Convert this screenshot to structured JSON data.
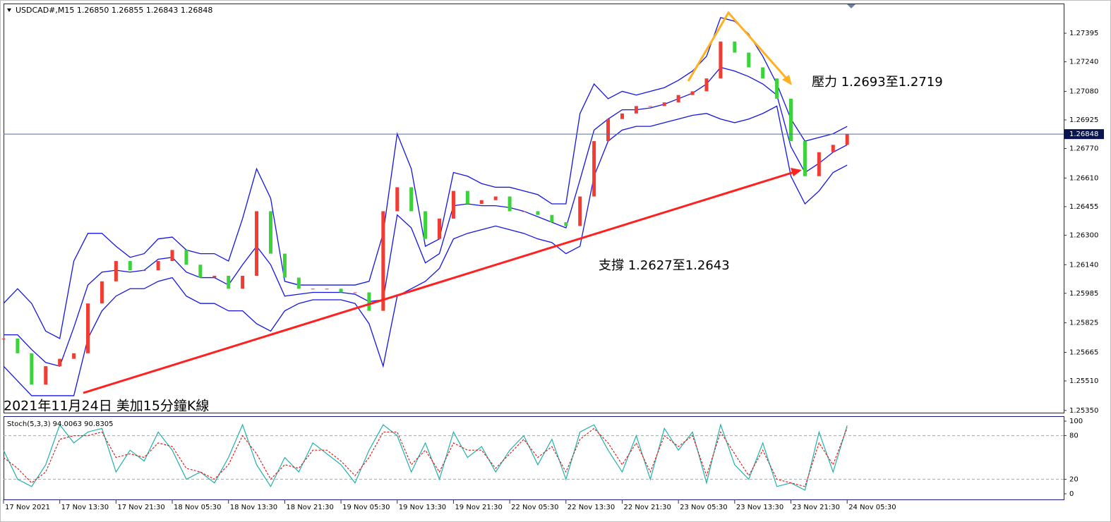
{
  "chart_data": [
    {
      "type": "candlestick",
      "title": "USDCAD#,M15  1.26850 1.26855 1.26843 1.26848",
      "caption": "2021年11月24日 美加15分鐘K線",
      "annotations": [
        "支撐 1.2627至1.2643",
        "壓力 1.2693至1.2719"
      ],
      "categories": [
        "17 Nov 2021",
        null,
        null,
        null,
        "17 Nov 13:30",
        null,
        null,
        null,
        "17 Nov 21:30",
        null,
        null,
        null,
        "18 Nov 05:30",
        null,
        null,
        null,
        "18 Nov 13:30",
        null,
        null,
        null,
        "18 Nov 21:30",
        null,
        null,
        null,
        "19 Nov 05:30",
        null,
        null,
        null,
        "19 Nov 13:30",
        null,
        null,
        null,
        "19 Nov 21:30",
        null,
        null,
        null,
        "22 Nov 05:30",
        null,
        null,
        null,
        "22 Nov 13:30",
        null,
        null,
        null,
        "22 Nov 21:30",
        null,
        null,
        null,
        "23 Nov 05:30",
        null,
        null,
        null,
        "23 Nov 13:30",
        null,
        null,
        null,
        "23 Nov 21:30",
        null,
        null,
        null,
        "24 Nov 05:30"
      ],
      "close": [
        1.2574,
        1.2566,
        1.2549,
        1.2559,
        1.2563,
        1.2566,
        1.2593,
        1.2605,
        1.2616,
        1.2611,
        1.2611,
        1.2616,
        1.2622,
        1.2614,
        1.2607,
        1.2608,
        1.2601,
        1.2608,
        1.2643,
        1.262,
        1.2607,
        1.2601,
        1.2601,
        1.2601,
        1.2599,
        1.2599,
        1.2589,
        1.2643,
        1.2656,
        1.2643,
        1.2628,
        1.2639,
        1.2654,
        1.2647,
        1.2649,
        1.2651,
        1.2643,
        1.2643,
        1.2641,
        1.2637,
        1.2635,
        1.2651,
        1.2681,
        1.2693,
        1.2696,
        1.27,
        1.27,
        1.2702,
        1.2706,
        1.2708,
        1.2715,
        1.2735,
        1.2729,
        1.2721,
        1.2715,
        1.2704,
        1.2681,
        1.2662,
        1.2675,
        1.2679,
        1.2685
      ],
      "up_color": "#f03c32",
      "down_color": "#3cd23c",
      "bands": {
        "color": "#1414e6",
        "upper": [
          1.2593,
          1.2601,
          1.2593,
          1.2578,
          1.2574,
          1.2616,
          1.2631,
          1.2631,
          1.2624,
          1.2618,
          1.262,
          1.2628,
          1.2629,
          1.2622,
          1.262,
          1.262,
          1.2616,
          1.2639,
          1.2666,
          1.265,
          1.2605,
          1.2603,
          1.2603,
          1.2603,
          1.2603,
          1.2603,
          1.2605,
          1.2631,
          1.2685,
          1.2666,
          1.2624,
          1.2628,
          1.2664,
          1.2662,
          1.2658,
          1.2656,
          1.2656,
          1.2654,
          1.2652,
          1.2647,
          1.2647,
          1.2696,
          1.2712,
          1.2704,
          1.2708,
          1.2706,
          1.2708,
          1.271,
          1.2714,
          1.2719,
          1.2727,
          1.2748,
          1.2746,
          1.2739,
          1.2727,
          1.2712,
          1.2693,
          1.2681,
          1.2683,
          1.2685,
          1.2689
        ],
        "middle": [
          1.2576,
          1.2576,
          1.2568,
          1.2561,
          1.2559,
          1.258,
          1.2603,
          1.261,
          1.2611,
          1.261,
          1.2611,
          1.2617,
          1.2618,
          1.261,
          1.2607,
          1.2607,
          1.2603,
          1.2614,
          1.2624,
          1.2614,
          1.2597,
          1.2598,
          1.2599,
          1.2599,
          1.2599,
          1.2598,
          1.2594,
          1.2595,
          1.2641,
          1.2634,
          1.2615,
          1.262,
          1.2646,
          1.2647,
          1.2646,
          1.2646,
          1.2645,
          1.2643,
          1.264,
          1.2637,
          1.2634,
          1.266,
          1.2687,
          1.2693,
          1.2698,
          1.2698,
          1.2699,
          1.2701,
          1.2704,
          1.2707,
          1.2712,
          1.2721,
          1.2719,
          1.2716,
          1.2712,
          1.2706,
          1.2678,
          1.2664,
          1.2669,
          1.2675,
          1.2679
        ],
        "lower": [
          1.2559,
          1.2551,
          1.2543,
          1.2543,
          1.2543,
          1.2543,
          1.2574,
          1.2589,
          1.2597,
          1.2601,
          1.2601,
          1.2605,
          1.2607,
          1.2597,
          1.2593,
          1.2593,
          1.2589,
          1.2589,
          1.2582,
          1.2578,
          1.2589,
          1.2593,
          1.2595,
          1.2595,
          1.2595,
          1.2593,
          1.2582,
          1.2559,
          1.2597,
          1.2601,
          1.2605,
          1.2612,
          1.2628,
          1.2631,
          1.2633,
          1.2635,
          1.2633,
          1.2631,
          1.2628,
          1.2626,
          1.262,
          1.2624,
          1.2662,
          1.2681,
          1.2687,
          1.2689,
          1.2689,
          1.2691,
          1.2693,
          1.2695,
          1.2696,
          1.2693,
          1.2691,
          1.2693,
          1.2696,
          1.27,
          1.2662,
          1.2647,
          1.2654,
          1.2664,
          1.2668
        ]
      },
      "last_price": 1.26848,
      "ylim": [
        1.25338,
        1.27556
      ],
      "yticks": [
        1.27395,
        {
          "value": 1.2724,
          "label": "1.27240"
        },
        {
          "value": 1.2708,
          "label": "1.27080"
        },
        1.26925,
        {
          "value": 1.2677,
          "label": "1.26770"
        },
        {
          "value": 1.2661,
          "label": "1.26610"
        },
        1.26455,
        {
          "value": 1.263,
          "label": "1.26300"
        },
        {
          "value": 1.2614,
          "label": "1.26140"
        },
        1.25985,
        1.25825,
        1.25665,
        {
          "value": 1.2551,
          "label": "1.25510"
        },
        {
          "value": 1.2535,
          "label": "1.25350"
        }
      ]
    },
    {
      "type": "line",
      "title": "Stoch(5,3,3) 94.0063 90.8305",
      "series": [
        {
          "color": "#20b2aa",
          "values": [
            60,
            20,
            10,
            40,
            95,
            70,
            85,
            90,
            30,
            60,
            45,
            85,
            60,
            20,
            30,
            15,
            50,
            95,
            40,
            10,
            50,
            30,
            70,
            55,
            40,
            15,
            60,
            95,
            80,
            30,
            70,
            20,
            85,
            50,
            65,
            30,
            60,
            80,
            40,
            75,
            20,
            85,
            95,
            60,
            30,
            80,
            20,
            90,
            60,
            85,
            15,
            95,
            40,
            20,
            70,
            10,
            15,
            5,
            85,
            30,
            94.0063
          ]
        },
        {
          "color": "#e02020",
          "dashed": true,
          "values": [
            50,
            35,
            15,
            30,
            75,
            80,
            80,
            85,
            50,
            55,
            50,
            70,
            65,
            35,
            30,
            20,
            40,
            80,
            55,
            20,
            40,
            35,
            60,
            60,
            45,
            25,
            50,
            85,
            85,
            40,
            60,
            30,
            70,
            60,
            60,
            35,
            55,
            75,
            50,
            65,
            30,
            75,
            90,
            70,
            40,
            70,
            30,
            80,
            65,
            80,
            25,
            85,
            55,
            25,
            60,
            20,
            15,
            10,
            70,
            40,
            90.8305
          ]
        }
      ],
      "ylim": [
        0,
        100
      ],
      "yticks": [
        0,
        20,
        80,
        100
      ],
      "levels": [
        20,
        80
      ]
    }
  ]
}
